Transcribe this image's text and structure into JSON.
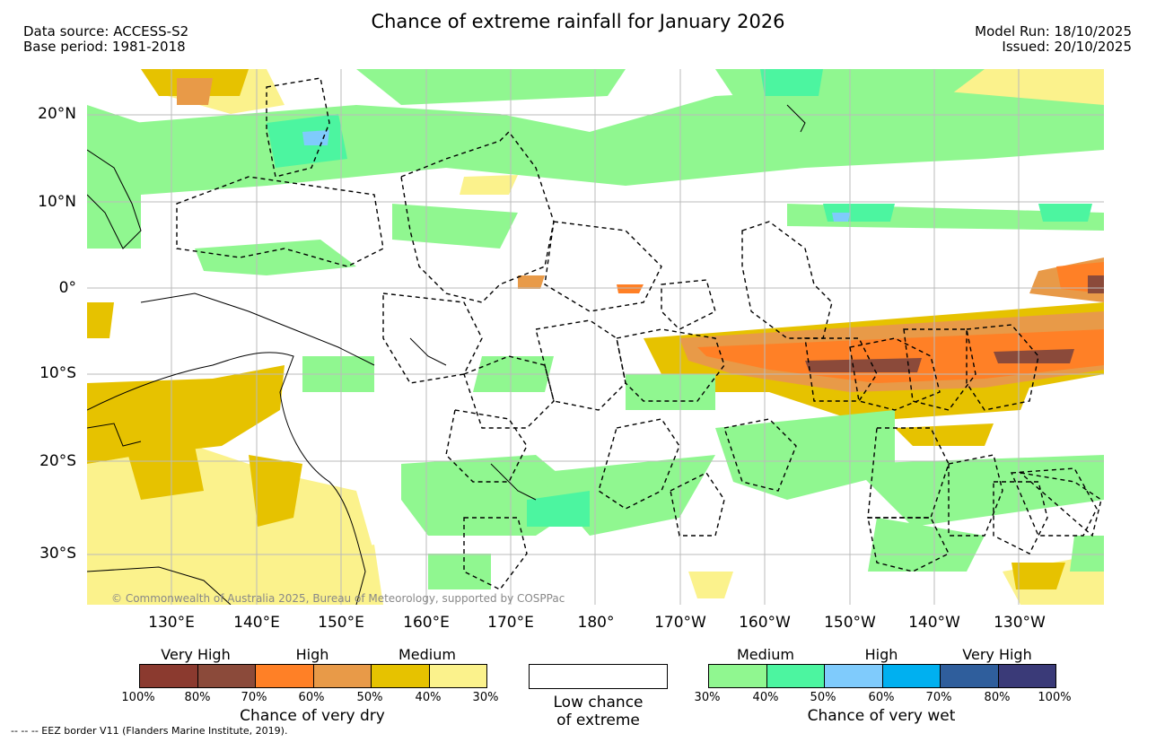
{
  "title": "Chance of extreme rainfall for January 2026",
  "data_source": "Data source: ACCESS-S2",
  "base_period": "Base period: 1981-2018",
  "model_run": "Model Run: 18/10/2025",
  "issued": "Issued: 20/10/2025",
  "copyright": "© Commonwealth of Australia 2025, Bureau of Meteorology, supported by COSPPac",
  "footnote": "-- -- -- EEZ border V11 (Flanders Marine Institute, 2019).",
  "lat_labels": [
    "20°N",
    "10°N",
    "0°",
    "10°S",
    "20°S",
    "30°S"
  ],
  "lon_labels": [
    "130°E",
    "140°E",
    "150°E",
    "160°E",
    "170°E",
    "180°",
    "170°W",
    "160°W",
    "150°W",
    "140°W",
    "130°W"
  ],
  "dry_legend": {
    "title": "Chance of very dry",
    "categories": [
      "Very High",
      "High",
      "Medium"
    ],
    "ticks": [
      "100%",
      "80%",
      "70%",
      "60%",
      "50%",
      "40%",
      "30%"
    ],
    "colors": [
      "#8b3a2f",
      "#8b4a3a",
      "#ff8026",
      "#e89a48",
      "#e6c200",
      "#fbf28c"
    ]
  },
  "low_legend": {
    "line1": "Low chance",
    "line2": "of extreme"
  },
  "wet_legend": {
    "title": "Chance of very wet",
    "categories": [
      "Medium",
      "High",
      "Very High"
    ],
    "ticks": [
      "30%",
      "40%",
      "50%",
      "60%",
      "70%",
      "80%",
      "100%"
    ],
    "colors": [
      "#90f790",
      "#4cf5a0",
      "#7fcbfc",
      "#00b0f0",
      "#2f5e9c",
      "#3a3a78"
    ]
  }
}
